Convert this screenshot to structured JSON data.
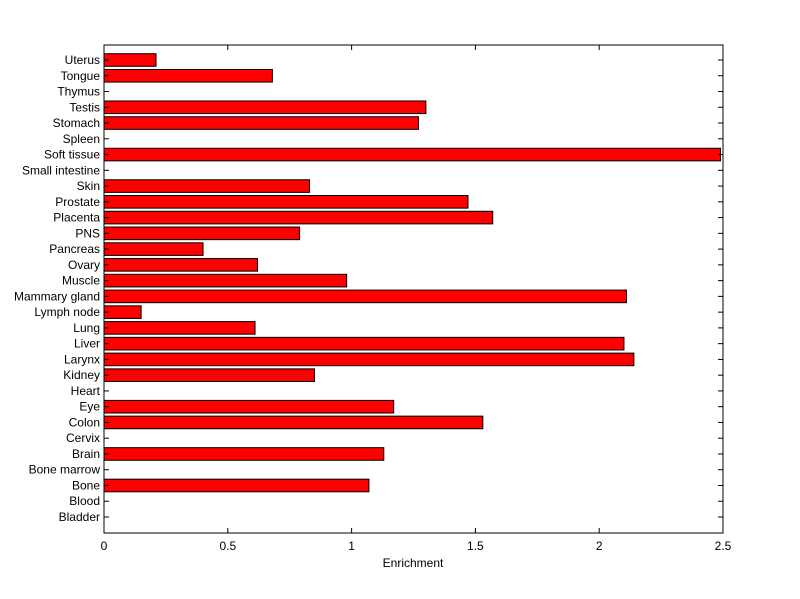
{
  "chart_data": {
    "type": "bar",
    "orientation": "horizontal",
    "xlabel": "Enrichment",
    "ylabel": "",
    "title": "",
    "xlim": [
      0,
      2.5
    ],
    "xticks": [
      0,
      0.5,
      1,
      1.5,
      2,
      2.5
    ],
    "xtick_labels": [
      "0",
      "0.5",
      "1",
      "1.5",
      "2",
      "2.5"
    ],
    "bar_color": "#ff0000",
    "bar_edge_color": "#000000",
    "categories": [
      "Bladder",
      "Blood",
      "Bone",
      "Bone marrow",
      "Brain",
      "Cervix",
      "Colon",
      "Eye",
      "Heart",
      "Kidney",
      "Larynx",
      "Liver",
      "Lung",
      "Lymph node",
      "Mammary gland",
      "Muscle",
      "Ovary",
      "Pancreas",
      "PNS",
      "Placenta",
      "Prostate",
      "Skin",
      "Small intestine",
      "Soft tissue",
      "Spleen",
      "Stomach",
      "Testis",
      "Thymus",
      "Tongue",
      "Uterus"
    ],
    "values": [
      0,
      0,
      1.07,
      0,
      1.13,
      0,
      1.53,
      1.17,
      0,
      0.85,
      2.14,
      2.1,
      0.61,
      0.15,
      2.11,
      0.98,
      0.62,
      0.4,
      0.79,
      1.57,
      1.47,
      0.83,
      0,
      2.49,
      0,
      1.27,
      1.3,
      0,
      0.68,
      0.21
    ],
    "grid": false
  }
}
